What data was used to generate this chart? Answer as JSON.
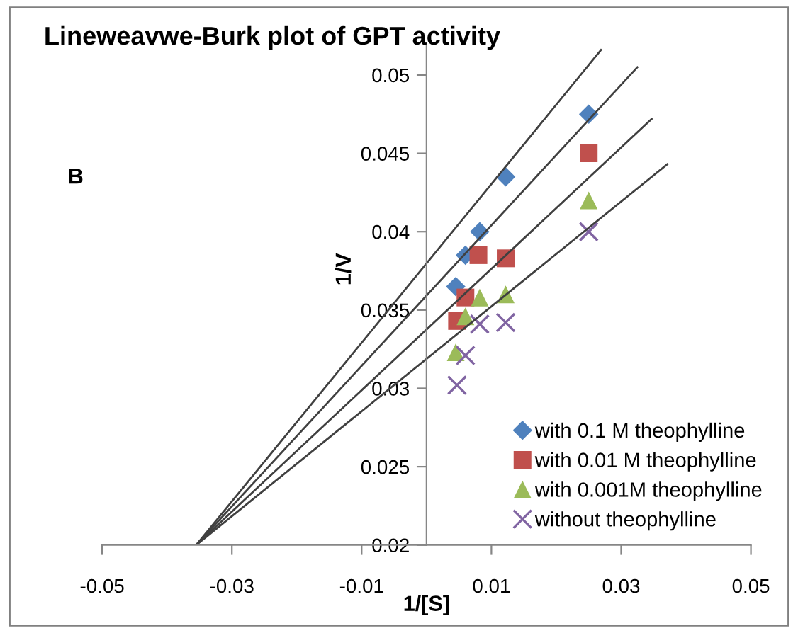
{
  "chart_data": {
    "type": "scatter",
    "title": "Lineweavwe-Burk plot of GPT activity",
    "xlabel": "1/[S]",
    "ylabel": "1/V",
    "annotations": [
      "B"
    ],
    "xlim": [
      -0.05,
      0.05
    ],
    "xticks": [
      -0.05,
      -0.03,
      -0.01,
      0.01,
      0.03,
      0.05
    ],
    "ylim": [
      0.02,
      0.052
    ],
    "yticks": [
      0.02,
      0.025,
      0.03,
      0.035,
      0.04,
      0.045,
      0.05
    ],
    "grid": false,
    "legend": "bottom right",
    "series": [
      {
        "name": "with 0.1 M theophylline",
        "color": "#4f81bd",
        "marker": "diamond",
        "x": [
          0.025,
          0.0122,
          0.0082,
          0.006,
          0.0045
        ],
        "values": [
          0.0475,
          0.0435,
          0.04,
          0.0385,
          0.0365
        ]
      },
      {
        "name": "with 0.01 M theophylline",
        "color": "#c0504d",
        "marker": "square",
        "x": [
          0.025,
          0.0122,
          0.008,
          0.006,
          0.0047
        ],
        "values": [
          0.045,
          0.0383,
          0.0385,
          0.0358,
          0.0343
        ]
      },
      {
        "name": "with 0.001M theophylline",
        "color": "#9bbb59",
        "marker": "triangle",
        "x": [
          0.025,
          0.0122,
          0.0082,
          0.006,
          0.0045
        ],
        "values": [
          0.042,
          0.036,
          0.0358,
          0.0346,
          0.0323
        ]
      },
      {
        "name": "without theophylline",
        "color": "#8064a2",
        "marker": "cross",
        "x": [
          0.025,
          0.0122,
          0.0082,
          0.006,
          0.0047
        ],
        "values": [
          0.04,
          0.0342,
          0.0341,
          0.0321,
          0.0302
        ]
      },
      {
        "type": "line",
        "color": "#404040",
        "x": [
          -0.0355,
          0.0269
        ],
        "values": [
          0.02,
          0.0516
        ]
      },
      {
        "type": "line",
        "color": "#404040",
        "x": [
          -0.0355,
          0.0325
        ],
        "values": [
          0.02,
          0.0505
        ]
      },
      {
        "type": "line",
        "color": "#404040",
        "x": [
          -0.0355,
          0.0347
        ],
        "values": [
          0.02,
          0.0472
        ]
      },
      {
        "type": "line",
        "color": "#404040",
        "x": [
          -0.0355,
          0.0371
        ],
        "values": [
          0.02,
          0.0443
        ]
      }
    ]
  }
}
